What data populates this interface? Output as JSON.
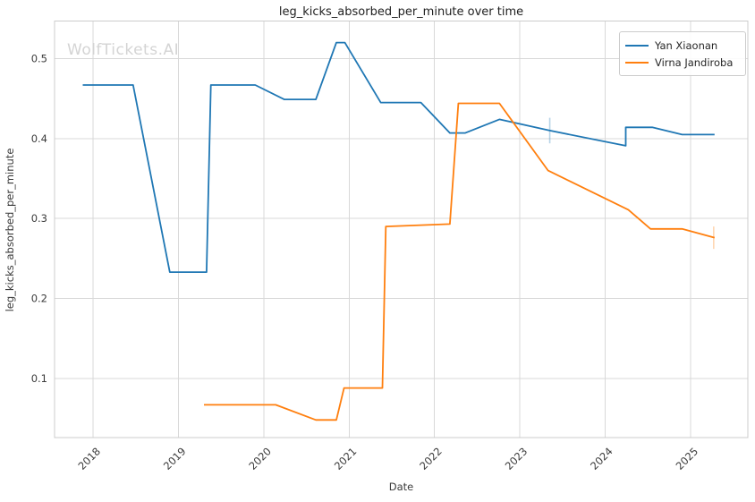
{
  "watermark": "WolfTickets.AI",
  "title": "leg_kicks_absorbed_per_minute over time",
  "axes": {
    "xlabel": "Date",
    "ylabel": "leg_kicks_absorbed_per_minute"
  },
  "legend": {
    "items": [
      {
        "label": "Yan Xiaonan",
        "color": "#1f77b4"
      },
      {
        "label": "Virna Jandiroba",
        "color": "#ff7f0e"
      }
    ]
  },
  "colors": {
    "grid": "#d8d8d8",
    "spine": "#cccccc",
    "tick_label": "#3b3b3b",
    "title": "#1f1f1f",
    "watermark": "#d4d4d4"
  },
  "chart_data": {
    "type": "line",
    "title": "leg_kicks_absorbed_per_minute over time",
    "xlabel": "Date",
    "ylabel": "leg_kicks_absorbed_per_minute",
    "xlim": [
      2017.55,
      2025.67
    ],
    "ylim": [
      0.026,
      0.547
    ],
    "x_ticks": [
      2018,
      2019,
      2020,
      2021,
      2022,
      2023,
      2024,
      2025
    ],
    "y_ticks": [
      0.1,
      0.2,
      0.3,
      0.4,
      0.5
    ],
    "grid": true,
    "legend_position": "upper right",
    "series": [
      {
        "name": "Yan Xiaonan",
        "color": "#1f77b4",
        "points": [
          [
            2017.88,
            0.467
          ],
          [
            2018.47,
            0.467
          ],
          [
            2018.9,
            0.233
          ],
          [
            2019.33,
            0.233
          ],
          [
            2019.38,
            0.467
          ],
          [
            2019.9,
            0.467
          ],
          [
            2020.24,
            0.449
          ],
          [
            2020.61,
            0.449
          ],
          [
            2020.85,
            0.52
          ],
          [
            2020.95,
            0.52
          ],
          [
            2021.37,
            0.445
          ],
          [
            2021.84,
            0.445
          ],
          [
            2022.18,
            0.407
          ],
          [
            2022.36,
            0.407
          ],
          [
            2022.76,
            0.424
          ],
          [
            2023.35,
            0.41
          ],
          [
            2024.24,
            0.391
          ],
          [
            2024.24,
            0.414
          ],
          [
            2024.55,
            0.414
          ],
          [
            2024.9,
            0.405
          ],
          [
            2025.28,
            0.405
          ]
        ],
        "event_tick": {
          "x": 2023.35,
          "y": 0.41,
          "half_height": 0.016
        }
      },
      {
        "name": "Virna Jandiroba",
        "color": "#ff7f0e",
        "points": [
          [
            2019.3,
            0.067
          ],
          [
            2020.14,
            0.067
          ],
          [
            2020.61,
            0.048
          ],
          [
            2020.85,
            0.048
          ],
          [
            2020.94,
            0.088
          ],
          [
            2021.39,
            0.088
          ],
          [
            2021.43,
            0.29
          ],
          [
            2022.18,
            0.293
          ],
          [
            2022.28,
            0.444
          ],
          [
            2022.76,
            0.444
          ],
          [
            2023.33,
            0.36
          ],
          [
            2024.27,
            0.311
          ],
          [
            2024.53,
            0.287
          ],
          [
            2024.9,
            0.287
          ],
          [
            2025.28,
            0.276
          ]
        ],
        "event_tick": {
          "x": 2025.27,
          "y": 0.276,
          "half_height": 0.014
        }
      }
    ]
  }
}
